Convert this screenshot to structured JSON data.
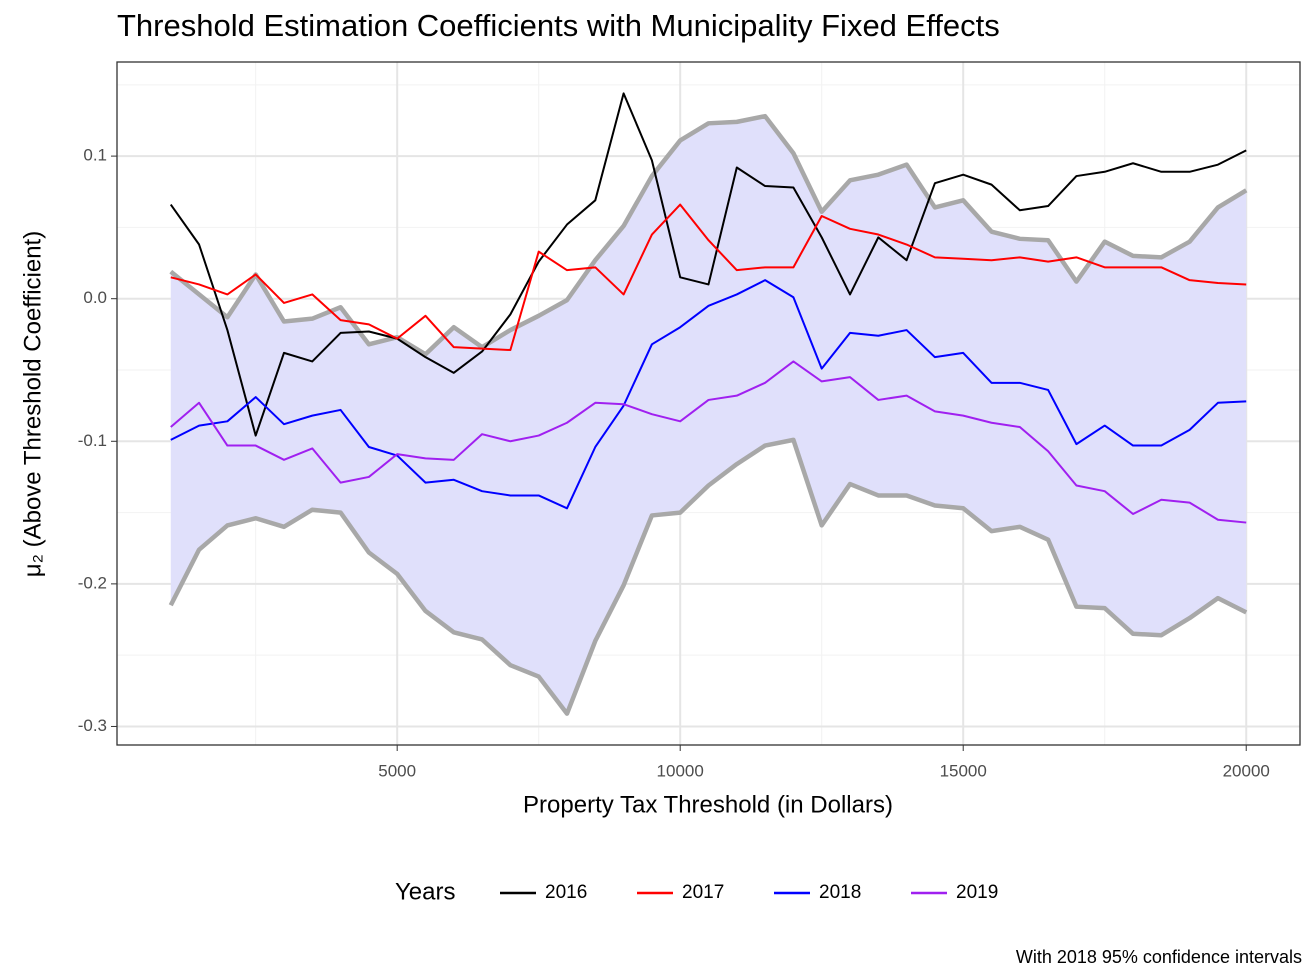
{
  "chart_data": {
    "type": "line",
    "title": "Threshold Estimation Coefficients with Municipality Fixed Effects",
    "x_label": "Property Tax Threshold (in Dollars)",
    "y_label": "μ₂ (Above Threshold Coefficient)",
    "legend_title": "Years",
    "caption": "With 2018 95% confidence intervals",
    "legend": "bottom",
    "grid": true,
    "xlim": [
      50,
      20950
    ],
    "ylim": [
      -0.313,
      0.166
    ],
    "xticks": [
      5000,
      10000,
      15000,
      20000
    ],
    "yticks": [
      0.1,
      {
        "value": 0,
        "label": "0.0"
      },
      -0.1,
      -0.2,
      -0.3
    ],
    "minor_xticks": [
      2500,
      7500,
      12500,
      17500
    ],
    "minor_yticks": [
      0.15,
      0.05,
      -0.05,
      -0.15,
      -0.25
    ],
    "x": [
      1000,
      1500,
      2000,
      2500,
      3000,
      3500,
      4000,
      4500,
      5000,
      5500,
      6000,
      6500,
      7000,
      7500,
      8000,
      8500,
      9000,
      9500,
      10000,
      10500,
      11000,
      11500,
      12000,
      12500,
      13000,
      13500,
      14000,
      14500,
      15000,
      15500,
      16000,
      16500,
      17000,
      17500,
      18000,
      18500,
      19000,
      19500,
      20000
    ],
    "band": {
      "fill": "#e0e0fb",
      "edge_color": "#a8a8a8",
      "upper": [
        0.019,
        0.003,
        -0.013,
        0.017,
        -0.016,
        -0.014,
        -0.006,
        -0.032,
        -0.027,
        -0.039,
        -0.02,
        -0.034,
        -0.022,
        -0.012,
        -0.001,
        0.027,
        0.051,
        0.086,
        0.111,
        0.123,
        0.124,
        0.128,
        0.102,
        0.061,
        0.083,
        0.087,
        0.094,
        0.064,
        0.069,
        0.047,
        0.042,
        0.041,
        0.012,
        0.04,
        0.03,
        0.029,
        0.04,
        0.064,
        0.076
      ],
      "lower": [
        -0.215,
        -0.176,
        -0.159,
        -0.154,
        -0.16,
        -0.148,
        -0.15,
        -0.178,
        -0.193,
        -0.219,
        -0.234,
        -0.239,
        -0.257,
        -0.265,
        -0.291,
        -0.24,
        -0.201,
        -0.152,
        -0.15,
        -0.131,
        -0.116,
        -0.103,
        -0.099,
        -0.159,
        -0.13,
        -0.138,
        -0.138,
        -0.145,
        -0.147,
        -0.163,
        -0.16,
        -0.169,
        -0.216,
        -0.217,
        -0.235,
        -0.236,
        -0.224,
        -0.21,
        -0.22
      ]
    },
    "series": [
      {
        "name": "2016",
        "color": "#000000",
        "values": [
          0.066,
          0.038,
          -0.022,
          -0.096,
          -0.038,
          -0.044,
          -0.024,
          -0.023,
          -0.028,
          -0.041,
          -0.052,
          -0.037,
          -0.011,
          0.026,
          0.052,
          0.069,
          0.144,
          0.097,
          0.015,
          0.01,
          0.092,
          0.079,
          0.078,
          0.043,
          0.003,
          0.043,
          0.027,
          0.081,
          0.087,
          0.08,
          0.062,
          0.065,
          0.086,
          0.089,
          0.095,
          0.089,
          0.089,
          0.094,
          0.104
        ]
      },
      {
        "name": "2017",
        "color": "#ff0000",
        "values": [
          0.015,
          0.01,
          0.003,
          0.017,
          -0.003,
          0.003,
          -0.015,
          -0.018,
          -0.028,
          -0.012,
          -0.034,
          -0.035,
          -0.036,
          0.033,
          0.02,
          0.022,
          0.003,
          0.045,
          0.066,
          0.041,
          0.02,
          0.022,
          0.022,
          0.058,
          0.049,
          0.045,
          0.038,
          0.029,
          0.028,
          0.027,
          0.029,
          0.026,
          0.029,
          0.022,
          0.022,
          0.022,
          0.013,
          0.011,
          0.01
        ]
      },
      {
        "name": "2018",
        "color": "#0000ff",
        "values": [
          -0.099,
          -0.089,
          -0.086,
          -0.069,
          -0.088,
          -0.082,
          -0.078,
          -0.104,
          -0.11,
          -0.129,
          -0.127,
          -0.135,
          -0.138,
          -0.138,
          -0.147,
          -0.104,
          -0.075,
          -0.032,
          -0.02,
          -0.005,
          0.003,
          0.013,
          0.001,
          -0.049,
          -0.024,
          -0.026,
          -0.022,
          -0.041,
          -0.038,
          -0.059,
          -0.059,
          -0.064,
          -0.102,
          -0.089,
          -0.103,
          -0.103,
          -0.092,
          -0.073,
          -0.072
        ]
      },
      {
        "name": "2019",
        "color": "#a020f0",
        "values": [
          -0.09,
          -0.073,
          -0.103,
          -0.103,
          -0.113,
          -0.105,
          -0.129,
          -0.125,
          -0.109,
          -0.112,
          -0.113,
          -0.095,
          -0.1,
          -0.096,
          -0.087,
          -0.073,
          -0.074,
          -0.081,
          -0.086,
          -0.071,
          -0.068,
          -0.059,
          -0.044,
          -0.058,
          -0.055,
          -0.071,
          -0.068,
          -0.079,
          -0.082,
          -0.087,
          -0.09,
          -0.107,
          -0.131,
          -0.135,
          -0.151,
          -0.141,
          -0.143,
          -0.155,
          -0.157
        ]
      }
    ]
  }
}
